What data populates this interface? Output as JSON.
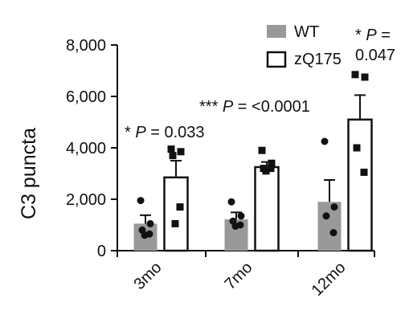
{
  "chart_data": {
    "type": "bar",
    "ylabel": "C3 puncta",
    "xlabel": "",
    "ylim": [
      0,
      8000
    ],
    "yticks": [
      0,
      2000,
      4000,
      6000,
      8000
    ],
    "ytick_labels": [
      "0",
      "2,000",
      "4,000",
      "6,000",
      "8,000"
    ],
    "categories": [
      "3mo",
      "7mo",
      "12mo"
    ],
    "series": [
      {
        "name": "WT",
        "fill": "#999999",
        "values": [
          1050,
          1220,
          1900
        ],
        "errors": [
          330,
          270,
          850
        ],
        "points": [
          [
            1950,
            1050,
            800,
            650,
            600
          ],
          [
            1900,
            1350,
            1150,
            1000,
            950
          ],
          [
            4250,
            1700,
            1350,
            700
          ]
        ]
      },
      {
        "name": "zQ175",
        "fill": "#ffffff",
        "values": [
          2850,
          3250,
          5100
        ],
        "errors": [
          650,
          200,
          950
        ],
        "points": [
          [
            3950,
            3850,
            3700,
            1700,
            1050
          ],
          [
            3900,
            3400,
            3200,
            3200,
            3100
          ],
          [
            6850,
            6750,
            4000,
            3050
          ]
        ]
      }
    ],
    "legend_position": "top-right",
    "annotations": [
      {
        "category": "3mo",
        "stars": "* ",
        "p": "P",
        "rest": " = 0.033"
      },
      {
        "category": "7mo",
        "stars": "*** ",
        "p": "P",
        "rest": " = <0.0001"
      },
      {
        "category": "12mo",
        "stars": "* ",
        "p": "P",
        "rest": " =",
        "line2": "0.047"
      }
    ],
    "grid": false
  }
}
